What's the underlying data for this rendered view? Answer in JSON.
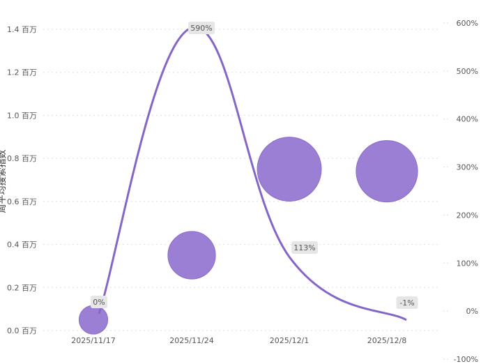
{
  "chart_data": {
    "type": "bubble+line",
    "ylabel": "周平均搜索指数",
    "categories": [
      "2025/11/17",
      "2025/11/24",
      "2025/12/1",
      "2025/12/8"
    ],
    "y_ticks": [
      "0.0 百万",
      "0.2 百万",
      "0.4 百万",
      "0.6 百万",
      "0.8 百万",
      "1.0 百万",
      "1.2 百万",
      "1.4 百万"
    ],
    "y2_ticks": [
      "-100%",
      "0%",
      "100%",
      "200%",
      "300%",
      "400%",
      "500%",
      "600%"
    ],
    "ylim": [
      0,
      1.4
    ],
    "y2lim": [
      -100,
      600
    ],
    "bubbles": [
      {
        "x": "2025/11/17",
        "value": 0.05,
        "size": 0.2
      },
      {
        "x": "2025/11/24",
        "value": 0.35,
        "size": 0.55
      },
      {
        "x": "2025/12/1",
        "value": 0.75,
        "size": 1.0
      },
      {
        "x": "2025/12/8",
        "value": 0.74,
        "size": 0.92
      }
    ],
    "growth": [
      {
        "x": "2025/11/17",
        "value": 0,
        "label": "0%"
      },
      {
        "x": "2025/11/24",
        "value": 590,
        "label": "590%"
      },
      {
        "x": "2025/12/1",
        "value": 113,
        "label": "113%"
      },
      {
        "x": "2025/12/8",
        "value": -1,
        "label": "-1%"
      }
    ],
    "colors": {
      "bubble": "#9b7fd4",
      "bubble_stroke": "#8a6cc8",
      "line": "#8466c9",
      "grid": "#dddddd"
    },
    "grid": true
  }
}
